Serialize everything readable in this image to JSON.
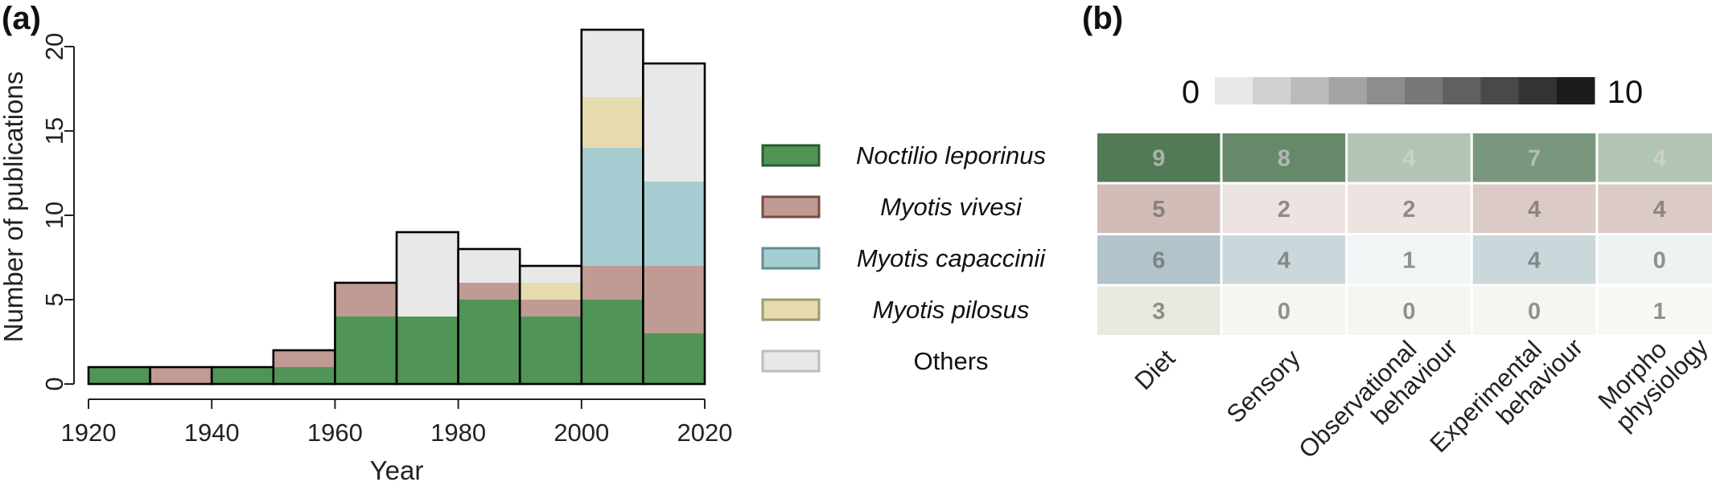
{
  "panel_a_label": "(a)",
  "panel_b_label": "(b)",
  "chart_data": [
    {
      "type": "bar",
      "stacked": true,
      "xlabel": "Year",
      "ylabel": "Number of publications",
      "xlim": [
        1920,
        2020
      ],
      "ylim": [
        0,
        21
      ],
      "xticks": [
        "1920",
        "1940",
        "1960",
        "1980",
        "2000",
        "2020"
      ],
      "yticks": [
        "0",
        "5",
        "10",
        "15",
        "20"
      ],
      "grid": false,
      "legend_position": "right",
      "bins": [
        {
          "start": 1920,
          "end": 1930
        },
        {
          "start": 1930,
          "end": 1940
        },
        {
          "start": 1940,
          "end": 1950
        },
        {
          "start": 1950,
          "end": 1960
        },
        {
          "start": 1960,
          "end": 1970
        },
        {
          "start": 1970,
          "end": 1980
        },
        {
          "start": 1980,
          "end": 1990
        },
        {
          "start": 1990,
          "end": 2000
        },
        {
          "start": 2000,
          "end": 2010
        },
        {
          "start": 2010,
          "end": 2020
        }
      ],
      "series": [
        {
          "name": "Noctilio leporinus",
          "color": "#3e8a44",
          "edge": "#2e5b31",
          "values": [
            1,
            0,
            1,
            1,
            4,
            4,
            5,
            4,
            5,
            3
          ]
        },
        {
          "name": "Myotis vivesi",
          "color": "#b89088",
          "edge": "#7a4a40",
          "values": [
            0,
            1,
            0,
            1,
            2,
            0,
            1,
            1,
            2,
            4
          ]
        },
        {
          "name": "Myotis capaccinii",
          "color": "#9cc8cc",
          "edge": "#5f8f92",
          "values": [
            0,
            0,
            0,
            0,
            0,
            0,
            0,
            0,
            7,
            5
          ]
        },
        {
          "name": "Myotis pilosus",
          "color": "#e3d7a5",
          "edge": "#a09a6a",
          "values": [
            0,
            0,
            0,
            0,
            0,
            0,
            0,
            1,
            3,
            0
          ]
        },
        {
          "name": "Others",
          "color": "#e6e6e6",
          "edge": "#bdbdbd",
          "values": [
            0,
            0,
            0,
            0,
            0,
            5,
            2,
            1,
            4,
            7
          ]
        }
      ],
      "totals": [
        1,
        1,
        1,
        2,
        6,
        9,
        8,
        7,
        21,
        19
      ]
    },
    {
      "type": "heatmap",
      "color_scale": {
        "min_label": "0",
        "max_label": "10",
        "steps": 10
      },
      "columns": [
        "Diet",
        "Sensory",
        "Observational behaviour",
        "Experimental behaviour",
        "Morpho physiology"
      ],
      "rows": [
        {
          "name": "Noctilio leporinus",
          "base_color": "#2f5e33",
          "values": [
            9,
            8,
            4,
            7,
            4
          ]
        },
        {
          "name": "Myotis vivesi",
          "base_color": "#9e6e64",
          "values": [
            5,
            2,
            2,
            4,
            4
          ]
        },
        {
          "name": "Myotis capaccinii",
          "base_color": "#6f959e",
          "values": [
            6,
            4,
            1,
            4,
            0
          ]
        },
        {
          "name": "Myotis pilosus",
          "base_color": "#b3b18a",
          "values": [
            3,
            0,
            0,
            0,
            1
          ]
        }
      ]
    }
  ]
}
